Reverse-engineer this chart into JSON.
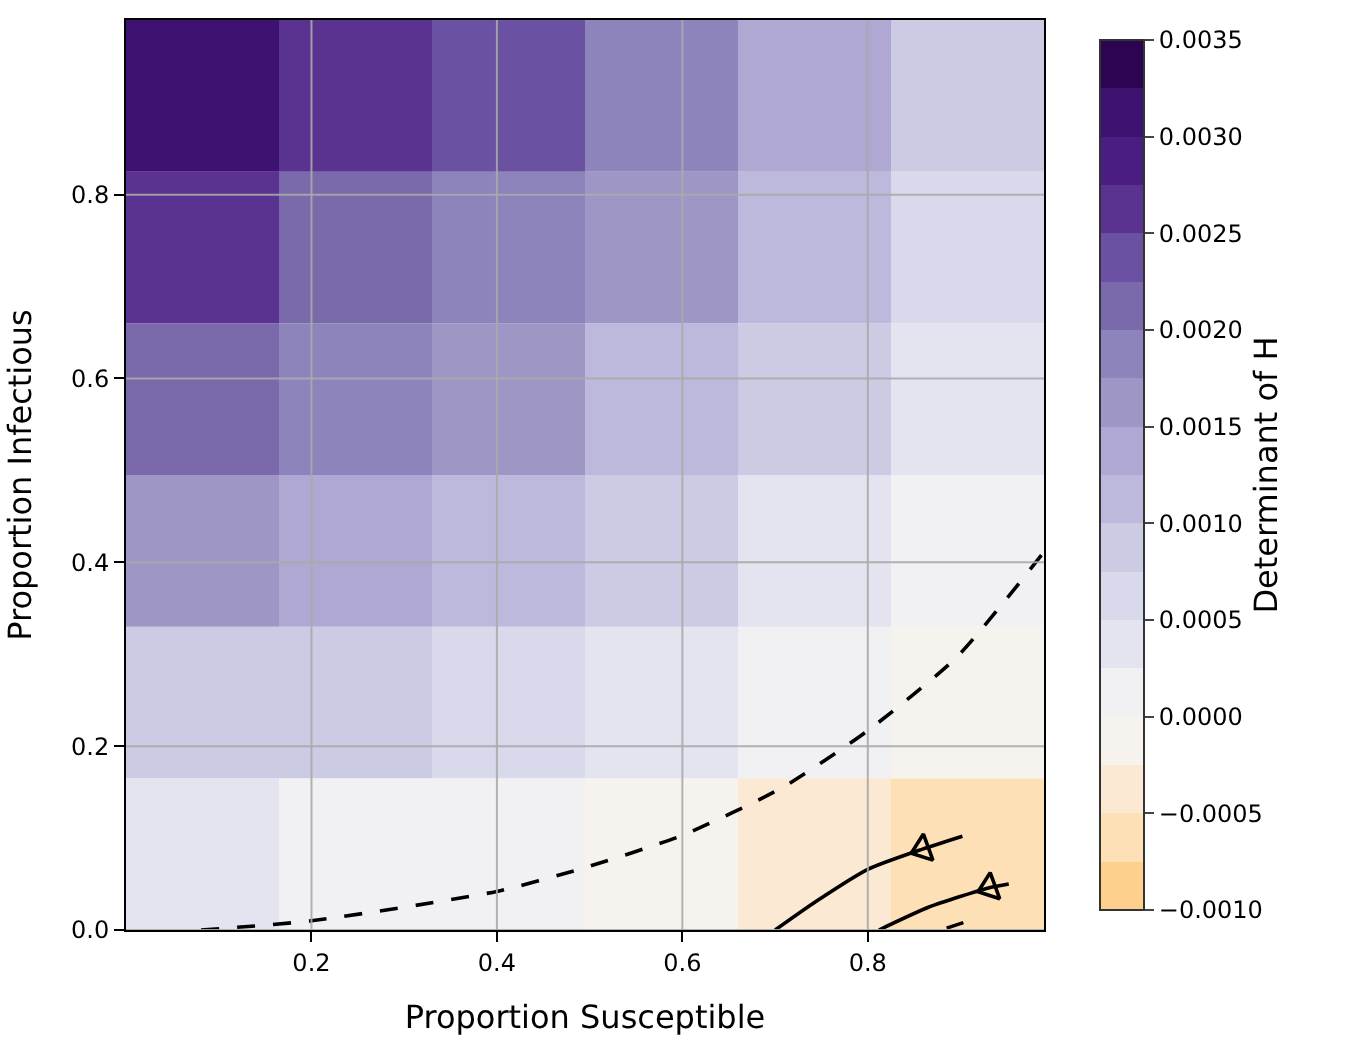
{
  "chart_data": {
    "type": "heatmap",
    "xlabel": "Proportion Susceptible",
    "ylabel": "Proportion Infectious",
    "clabel": "Determinant of H",
    "x": [
      0.0825,
      0.2475,
      0.4125,
      0.5775,
      0.7425,
      0.9075
    ],
    "y": [
      0.0825,
      0.2475,
      0.4125,
      0.5775,
      0.7425,
      0.9075
    ],
    "cells": [
      [
        0.0003,
        0.00019,
        7e-05,
        -0.0001,
        -0.0003,
        -0.00054
      ],
      [
        0.00091,
        0.00075,
        0.00058,
        0.00037,
        0.00011,
        -0.00018
      ],
      [
        0.00151,
        0.0013,
        0.00107,
        0.00081,
        0.00049,
        0.00016
      ],
      [
        0.00204,
        0.00179,
        0.00152,
        0.00121,
        0.00084,
        0.00047
      ],
      [
        0.00253,
        0.00224,
        0.00192,
        0.00156,
        0.00115,
        0.00074
      ],
      [
        0.003,
        0.00265,
        0.00228,
        0.00187,
        0.00141,
        0.00095
      ]
    ],
    "colors": [
      "#fdd08e",
      "#fde0b5",
      "#fbe9d3",
      "#f6f2ee",
      "#f1f0f3",
      "#e3e4ef",
      "#d8d9ea",
      "#cccbe4",
      "#bdb9dc",
      "#aea8d2",
      "#9e96c5",
      "#8c84ba",
      "#7a6aac",
      "#6a51a2",
      "#5a3391",
      "#4a1d82",
      "#3e1270",
      "#2d0452"
    ],
    "clim": [
      -0.001,
      0.0035
    ],
    "cticks": [
      {
        "value": -0.001,
        "label": "−0.0010"
      },
      {
        "value": -0.0005,
        "label": "−0.0005"
      },
      {
        "value": 0,
        "label": "0.0000"
      },
      {
        "value": 0.0005,
        "label": "0.0005"
      },
      {
        "value": 0.001,
        "label": "0.0010"
      },
      {
        "value": 0.0015,
        "label": "0.0015"
      },
      {
        "value": 0.002,
        "label": "0.0020"
      },
      {
        "value": 0.0025,
        "label": "0.0025"
      },
      {
        "value": 0.003,
        "label": "0.0030"
      },
      {
        "value": 0.0035,
        "label": "0.0035"
      }
    ],
    "series": [
      {
        "type": "line",
        "color": "#000000",
        "line_style": "dashed",
        "x": [
          0.081,
          0.2,
          0.4,
          0.492,
          0.6,
          0.708,
          0.8,
          0.896,
          0.989
        ],
        "values": [
          0,
          0.01,
          0.042,
          0.067,
          0.103,
          0.155,
          0.217,
          0.297,
          0.41
        ]
      },
      {
        "type": "line",
        "color": "#000000",
        "line_style": "solid",
        "x": [
          0.902,
          0.859,
          0.8,
          0.744,
          0.7
        ],
        "values": [
          0.102,
          0.088,
          0.066,
          0.031,
          0.0
        ]
      },
      {
        "type": "line",
        "color": "#000000",
        "line_style": "solid",
        "x": [
          0.952,
          0.931,
          0.866,
          0.812
        ],
        "values": [
          0.05,
          0.046,
          0.025,
          0.0
        ]
      },
      {
        "type": "line",
        "color": "#000000",
        "line_style": "solid",
        "x": [
          0.903,
          0.885
        ],
        "values": [
          0.008,
          0.002
        ]
      },
      {
        "type": "scatter",
        "color": "#000000",
        "marker": "triangle",
        "x": [
          0.859,
          0.931
        ],
        "values": [
          0.088,
          0.046
        ]
      }
    ],
    "xlim": [
      0,
      0.99
    ],
    "ylim": [
      0,
      0.99
    ],
    "xticks": [
      0.2,
      0.4,
      0.6,
      0.8
    ],
    "yticks": [
      {
        "value": 0,
        "label": "0.0"
      },
      0.2,
      0.4,
      0.6,
      0.8
    ],
    "grid": true
  }
}
